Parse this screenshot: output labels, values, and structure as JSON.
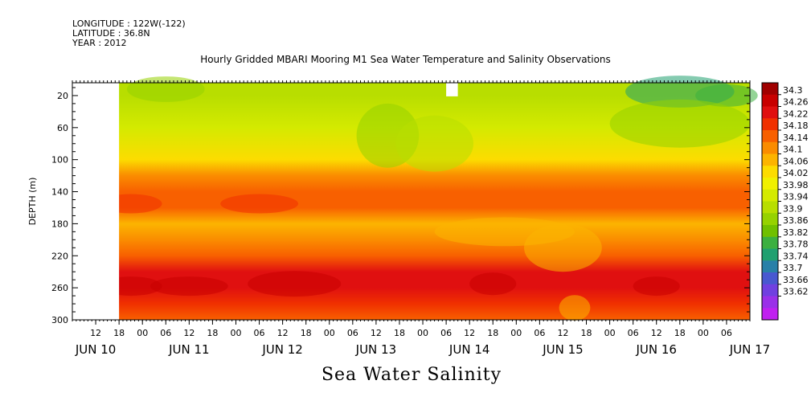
{
  "header": {
    "longitude": "LONGITUDE : 122W(-122)",
    "latitude": "LATITUDE : 36.8N",
    "year": "YEAR : 2012"
  },
  "chart_data": {
    "type": "heatmap",
    "title": "Hourly Gridded MBARI Mooring M1 Sea Water Temperature and Salinity Observations",
    "xlabel": "Sea Water Salinity",
    "ylabel": "DEPTH (m)",
    "ylim": [
      300,
      4
    ],
    "y_ticks": [
      20,
      60,
      100,
      140,
      180,
      220,
      260,
      300
    ],
    "x_range": [
      "2012-06-10T06:00",
      "2012-06-17T12:00"
    ],
    "x_hour_ticks": [
      "12",
      "18",
      "00",
      "06",
      "12",
      "18",
      "00",
      "06",
      "12",
      "18",
      "00",
      "06",
      "12",
      "18",
      "00",
      "06",
      "12",
      "18",
      "00",
      "06",
      "12",
      "18",
      "00",
      "06",
      "12",
      "18",
      "00",
      "06"
    ],
    "x_date_ticks": [
      "JUN 10",
      "JUN 11",
      "JUN 12",
      "JUN 13",
      "JUN 14",
      "JUN 15",
      "JUN 16",
      "JUN 17"
    ],
    "data_start": "2012-06-10T18:00",
    "colorbar": {
      "levels": [
        "34.3",
        "34.26",
        "34.22",
        "34.18",
        "34.14",
        "34.1",
        "34.06",
        "34.02",
        "33.98",
        "33.94",
        "33.9",
        "33.86",
        "33.82",
        "33.78",
        "33.74",
        "33.7",
        "33.66",
        "33.62"
      ],
      "colors": [
        "#a00000",
        "#c80000",
        "#e01010",
        "#f03000",
        "#f86000",
        "#fa8c00",
        "#fcb400",
        "#fcdc00",
        "#f0f000",
        "#d4ea00",
        "#b8de00",
        "#96d200",
        "#70c000",
        "#3cb040",
        "#20a070",
        "#2880a8",
        "#4858d0",
        "#7040e0",
        "#9a30e8",
        "#c020f0"
      ]
    },
    "salinity_profile": [
      {
        "depth": 4,
        "value": 33.9
      },
      {
        "depth": 20,
        "value": 33.91
      },
      {
        "depth": 60,
        "value": 33.95
      },
      {
        "depth": 100,
        "value": 34.03
      },
      {
        "depth": 120,
        "value": 34.1
      },
      {
        "depth": 140,
        "value": 34.15
      },
      {
        "depth": 160,
        "value": 34.17
      },
      {
        "depth": 180,
        "value": 34.09
      },
      {
        "depth": 200,
        "value": 34.1
      },
      {
        "depth": 220,
        "value": 34.16
      },
      {
        "depth": 240,
        "value": 34.22
      },
      {
        "depth": 260,
        "value": 34.24
      },
      {
        "depth": 280,
        "value": 34.19
      },
      {
        "depth": 300,
        "value": 34.15
      }
    ],
    "grid": false,
    "legend": "right"
  }
}
